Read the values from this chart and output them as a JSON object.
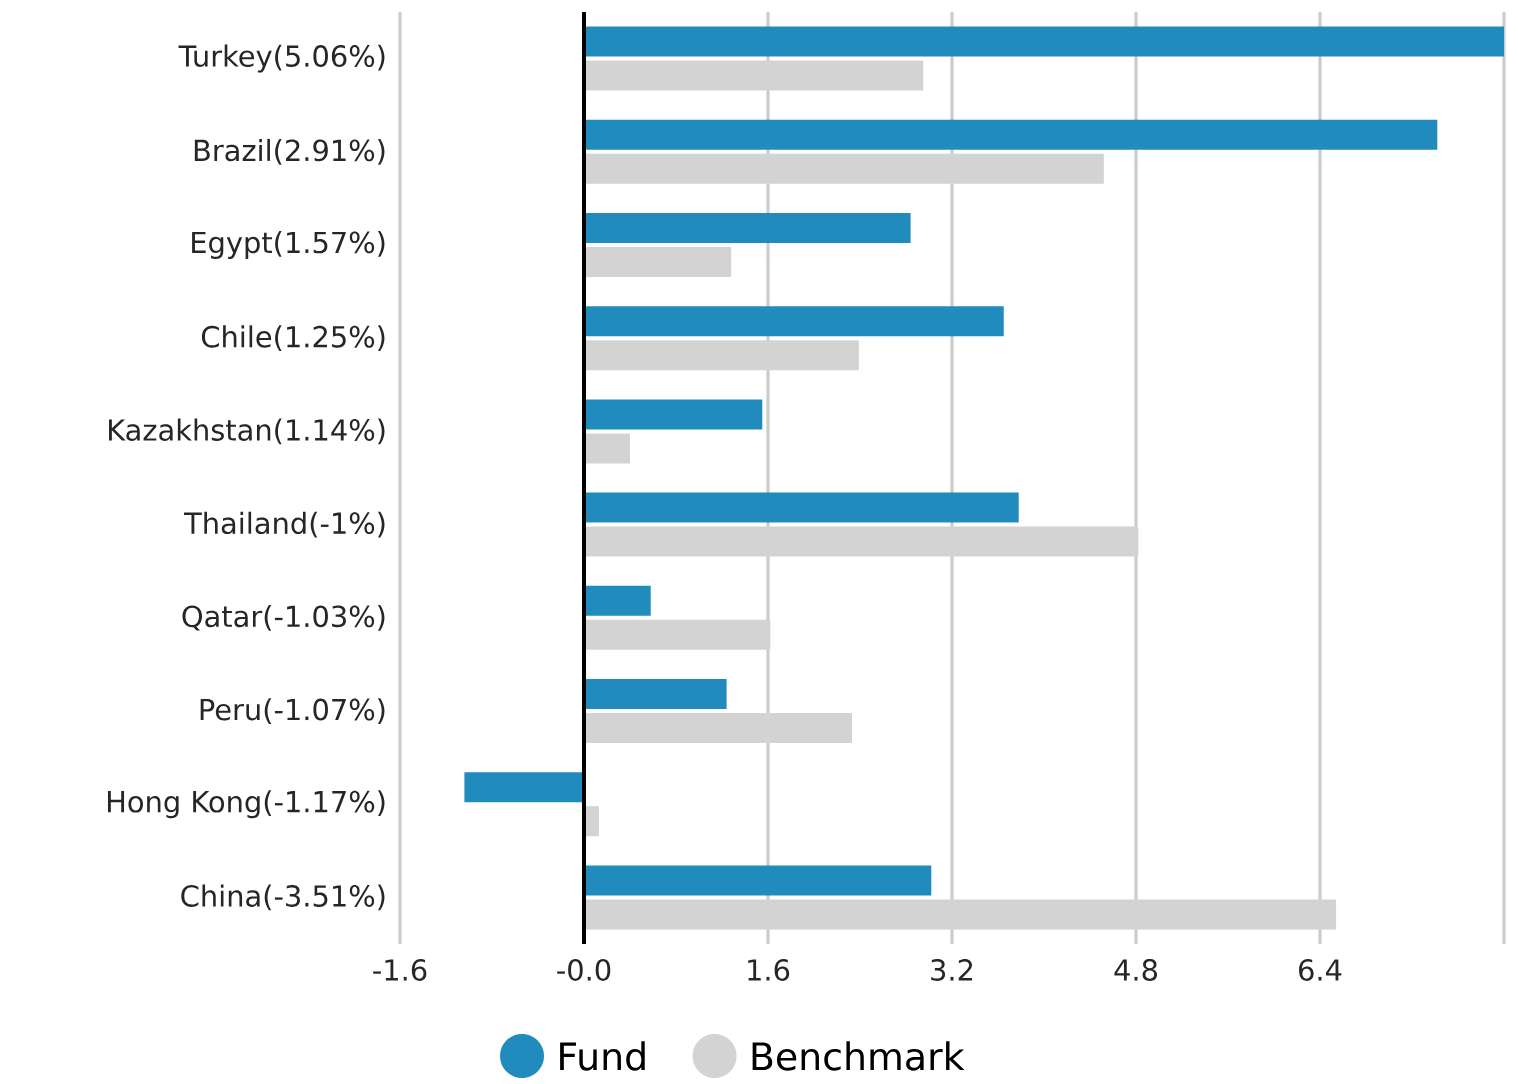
{
  "chart_data": {
    "type": "bar",
    "orientation": "horizontal",
    "categories": [
      "Turkey(5.06%)",
      "Brazil(2.91%)",
      "Egypt(1.57%)",
      "Chile(1.25%)",
      "Kazakhstan(1.14%)",
      "Thailand(-1%)",
      "Qatar(-1.03%)",
      "Peru(-1.07%)",
      "Hong Kong(-1.17%)",
      "China(-3.51%)"
    ],
    "series": [
      {
        "name": "Fund",
        "color": "#228bbe",
        "values": [
          8.0,
          7.42,
          2.84,
          3.65,
          1.55,
          3.78,
          0.58,
          1.24,
          -1.04,
          3.02
        ]
      },
      {
        "name": "Benchmark",
        "color": "#d3d3d3",
        "values": [
          2.95,
          4.52,
          1.28,
          2.39,
          0.4,
          4.82,
          1.62,
          2.33,
          0.13,
          6.54
        ]
      }
    ],
    "xlim": [
      -1.6,
      8.0
    ],
    "xticks": [
      -1.6,
      {
        "value": 0,
        "label": "-0.0"
      },
      1.6,
      3.2,
      4.8,
      6.4,
      {
        "value": 8.0,
        "label": null
      }
    ],
    "grid": "x",
    "legend": "bottom",
    "marker": "circle",
    "ref_lines": [
      {
        "axis": "x",
        "value": 0,
        "color": "#000000"
      }
    ]
  }
}
